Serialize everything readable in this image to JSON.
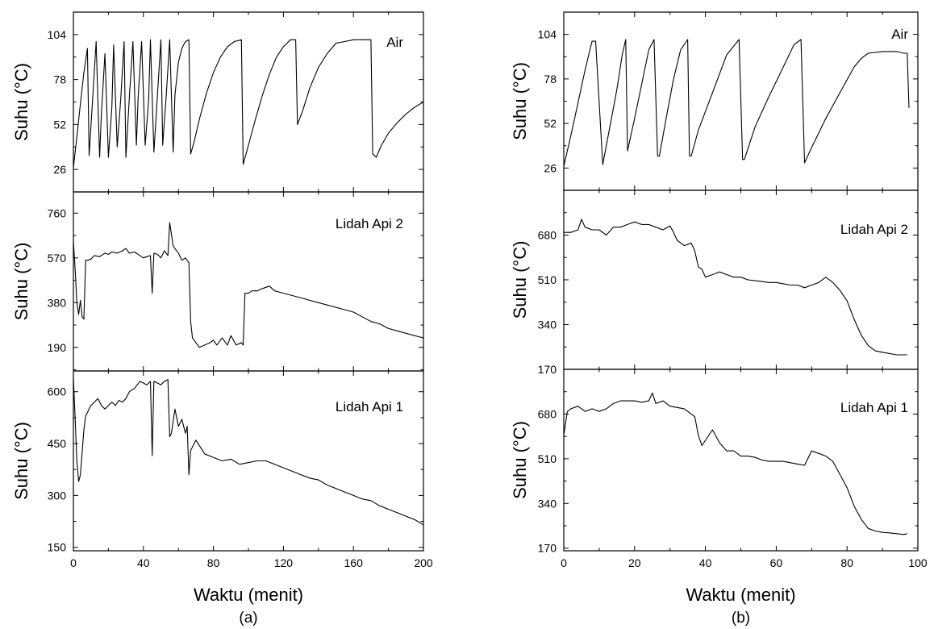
{
  "chart_data": [
    {
      "panel": "a",
      "caption": "(a)",
      "type": "line",
      "xlabel": "Waktu (menit)",
      "xlim": [
        0,
        200
      ],
      "xticks": [
        0,
        40,
        80,
        120,
        160,
        200
      ],
      "subplots": [
        {
          "label": "Air",
          "ylabel": "Suhu (°C)",
          "ylim": [
            13,
            117
          ],
          "yticks": [
            26,
            52,
            78,
            104
          ],
          "x": [
            0,
            2,
            4,
            6,
            8,
            9,
            11,
            13,
            15,
            16,
            18,
            20,
            22,
            23,
            25,
            27,
            29,
            30,
            32,
            34,
            36,
            37,
            39,
            41,
            43,
            44,
            46,
            48,
            50,
            51,
            53,
            55,
            57,
            58,
            60,
            62,
            64,
            66,
            67,
            69,
            72,
            76,
            80,
            84,
            88,
            92,
            96,
            97,
            100,
            104,
            108,
            112,
            116,
            120,
            124,
            127,
            128,
            131,
            135,
            140,
            145,
            150,
            155,
            160,
            165,
            170,
            171,
            173,
            176,
            180,
            185,
            190,
            195,
            200
          ],
          "y": [
            27,
            45,
            64,
            82,
            96,
            34,
            67,
            100,
            33,
            58,
            93,
            33,
            62,
            98,
            39,
            66,
            100,
            33,
            68,
            100,
            40,
            68,
            100,
            40,
            66,
            101,
            36,
            69,
            101,
            40,
            68,
            101,
            36,
            69,
            88,
            96,
            100,
            101,
            35,
            42,
            55,
            70,
            82,
            91,
            97,
            100,
            101,
            29,
            40,
            55,
            69,
            81,
            91,
            97,
            101,
            101,
            52,
            60,
            73,
            85,
            93,
            99,
            100,
            101,
            101,
            101,
            35,
            33,
            40,
            47,
            53,
            58,
            62,
            65
          ]
        },
        {
          "label": "Lidah Api 2",
          "ylabel": "Suhu (°C)",
          "ylim": [
            90,
            850
          ],
          "yticks": [
            190,
            380,
            570,
            760
          ],
          "x": [
            0,
            1,
            2,
            3,
            4,
            5,
            6,
            7,
            8,
            10,
            12,
            15,
            18,
            20,
            22,
            25,
            28,
            30,
            32,
            35,
            38,
            40,
            42,
            44,
            45,
            46,
            48,
            50,
            52,
            54,
            55,
            57,
            60,
            62,
            64,
            66,
            67,
            68,
            70,
            72,
            75,
            78,
            80,
            82,
            85,
            88,
            90,
            93,
            96,
            97,
            98,
            100,
            102,
            105,
            108,
            112,
            115,
            120,
            125,
            130,
            135,
            140,
            145,
            150,
            155,
            160,
            165,
            170,
            175,
            180,
            185,
            190,
            195,
            200
          ],
          "y": [
            640,
            520,
            380,
            330,
            390,
            320,
            310,
            560,
            560,
            565,
            580,
            575,
            590,
            585,
            595,
            590,
            600,
            610,
            590,
            595,
            580,
            570,
            575,
            580,
            420,
            590,
            585,
            570,
            600,
            580,
            720,
            620,
            590,
            560,
            570,
            550,
            300,
            230,
            210,
            190,
            200,
            210,
            220,
            200,
            230,
            200,
            240,
            200,
            210,
            200,
            420,
            420,
            430,
            430,
            440,
            450,
            430,
            420,
            410,
            400,
            390,
            380,
            370,
            360,
            350,
            340,
            320,
            300,
            290,
            270,
            260,
            250,
            240,
            230
          ]
        },
        {
          "label": "Lidah Api 1",
          "ylabel": "Suhu (°C)",
          "ylim": [
            140,
            660
          ],
          "yticks": [
            150,
            300,
            450,
            600
          ],
          "x": [
            0,
            1,
            2,
            3,
            4,
            6,
            7,
            8,
            10,
            12,
            14,
            16,
            18,
            20,
            22,
            24,
            26,
            28,
            30,
            32,
            35,
            38,
            40,
            42,
            44,
            45,
            46,
            48,
            50,
            52,
            54,
            55,
            56,
            58,
            60,
            62,
            64,
            65,
            66,
            67,
            70,
            75,
            80,
            85,
            90,
            95,
            100,
            105,
            110,
            115,
            120,
            125,
            130,
            135,
            140,
            145,
            150,
            155,
            160,
            165,
            170,
            175,
            180,
            185,
            190,
            195,
            200
          ],
          "y": [
            640,
            520,
            400,
            340,
            360,
            490,
            530,
            540,
            560,
            570,
            580,
            560,
            550,
            560,
            570,
            560,
            575,
            570,
            580,
            600,
            610,
            630,
            625,
            620,
            630,
            415,
            630,
            625,
            620,
            630,
            635,
            470,
            480,
            550,
            500,
            520,
            480,
            500,
            360,
            430,
            460,
            420,
            410,
            400,
            405,
            390,
            395,
            400,
            400,
            390,
            380,
            370,
            360,
            350,
            345,
            330,
            320,
            310,
            300,
            290,
            285,
            270,
            260,
            250,
            240,
            230,
            215
          ]
        }
      ]
    },
    {
      "panel": "b",
      "caption": "(b)",
      "type": "line",
      "xlabel": "Waktu (menit)",
      "xlim": [
        0,
        100
      ],
      "xticks": [
        0,
        20,
        40,
        60,
        80,
        100
      ],
      "subplots": [
        {
          "label": "Air",
          "ylabel": "Suhu (°C)",
          "ylim": [
            13,
            117
          ],
          "yticks": [
            26,
            52,
            78,
            104
          ],
          "x": [
            0,
            2,
            4,
            6,
            7.5,
            8,
            9,
            11,
            13,
            15,
            16.5,
            17.5,
            18,
            20,
            22,
            24,
            25.5,
            26.5,
            27,
            29,
            31,
            33,
            35,
            35.5,
            36,
            38,
            42,
            46,
            49.5,
            50.5,
            51,
            54,
            58,
            62,
            65,
            67,
            68,
            70,
            74,
            78,
            82,
            84,
            86,
            90,
            94,
            96,
            97,
            97.5
          ],
          "y": [
            27,
            45,
            64,
            83,
            96,
            100,
            100,
            28,
            50,
            72,
            92,
            101,
            36,
            55,
            75,
            95,
            101,
            33,
            33,
            56,
            78,
            95,
            101,
            33,
            33,
            48,
            70,
            92,
            101,
            31,
            31,
            50,
            68,
            85,
            98,
            101,
            29,
            38,
            55,
            70,
            85,
            90,
            93,
            94,
            94,
            93,
            93,
            61
          ]
        },
        {
          "label": "Lidah Api 2",
          "ylabel": "Suhu (°C)",
          "ylim": [
            170,
            850
          ],
          "yticks": [
            170,
            340,
            510,
            680
          ],
          "x": [
            0,
            2,
            4,
            5,
            6,
            8,
            10,
            12,
            14,
            16,
            18,
            20,
            22,
            24,
            26,
            28,
            30,
            31,
            32,
            34,
            36,
            37,
            38,
            39,
            40,
            42,
            44,
            46,
            48,
            50,
            52,
            55,
            58,
            60,
            62,
            64,
            66,
            68,
            70,
            72,
            74,
            76,
            78,
            80,
            82,
            84,
            86,
            88,
            90,
            92,
            94,
            96,
            97
          ],
          "y": [
            690,
            690,
            700,
            740,
            710,
            700,
            700,
            680,
            710,
            710,
            720,
            730,
            720,
            720,
            710,
            700,
            715,
            690,
            660,
            640,
            650,
            620,
            560,
            550,
            520,
            530,
            540,
            530,
            520,
            520,
            510,
            505,
            500,
            500,
            495,
            490,
            490,
            480,
            490,
            500,
            520,
            500,
            470,
            430,
            360,
            300,
            260,
            240,
            235,
            230,
            225,
            225,
            225
          ]
        },
        {
          "label": "Lidah Api 1",
          "ylabel": "Suhu (°C)",
          "ylim": [
            160,
            850
          ],
          "yticks": [
            170,
            340,
            510,
            680
          ],
          "x": [
            0,
            1,
            2,
            4,
            6,
            8,
            10,
            12,
            14,
            16,
            18,
            20,
            22,
            24,
            25,
            26,
            28,
            30,
            32,
            34,
            36,
            37,
            38,
            39,
            40,
            42,
            44,
            46,
            48,
            50,
            52,
            54,
            56,
            58,
            60,
            62,
            64,
            66,
            68,
            70,
            72,
            74,
            76,
            78,
            80,
            82,
            84,
            86,
            88,
            90,
            92,
            94,
            96,
            97
          ],
          "y": [
            600,
            690,
            700,
            710,
            690,
            700,
            690,
            700,
            720,
            730,
            730,
            730,
            725,
            730,
            760,
            720,
            730,
            710,
            705,
            700,
            680,
            670,
            600,
            560,
            580,
            620,
            570,
            540,
            540,
            520,
            520,
            515,
            505,
            500,
            500,
            500,
            495,
            490,
            485,
            540,
            530,
            520,
            500,
            450,
            400,
            330,
            280,
            245,
            235,
            230,
            228,
            225,
            222,
            225
          ]
        }
      ]
    }
  ]
}
